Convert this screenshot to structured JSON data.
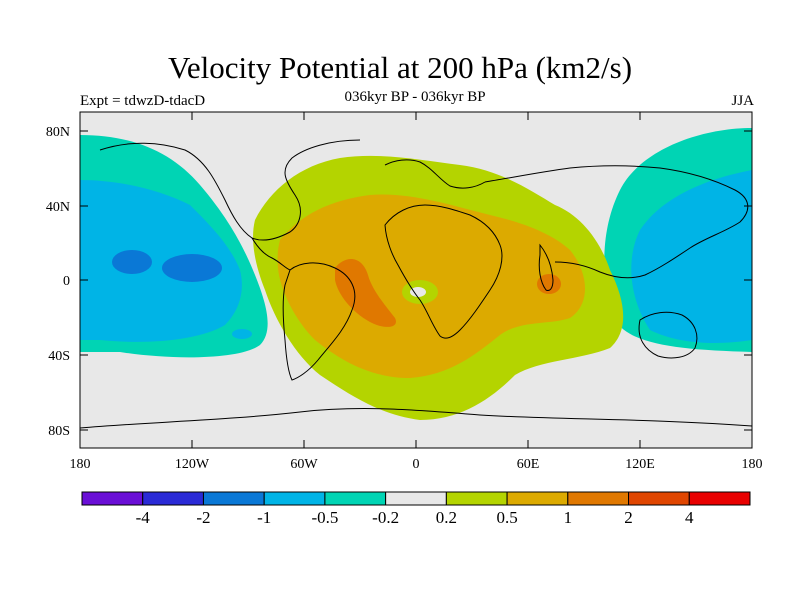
{
  "title": "Velocity Potential at 200 hPa (km2/s)",
  "subtitle": "036kyr BP - 036kyr BP",
  "experiment": "Expt = tdwzD-tdacD",
  "season": "JJA",
  "lat_ticks": [
    "80N",
    "40N",
    "0",
    "40S",
    "80S"
  ],
  "lon_ticks": [
    "180",
    "120W",
    "60W",
    "0",
    "60E",
    "120E",
    "180"
  ],
  "colorbar": {
    "colors": [
      "#6a0fd6",
      "#2a2ad6",
      "#0a78d6",
      "#00b4e6",
      "#00d4b4",
      "#e8e8e8",
      "#b4d400",
      "#dcaa00",
      "#e07800",
      "#e04600",
      "#e80000"
    ],
    "labels": [
      "-4",
      "-2",
      "-1",
      "-0.5",
      "-0.2",
      "0.2",
      "0.5",
      "1",
      "2",
      "4"
    ]
  },
  "chart_data": {
    "type": "heatmap",
    "title": "Velocity Potential at 200 hPa (km2/s)",
    "subtitle": "036kyr BP - 036kyr BP",
    "xlim": [
      -180,
      180
    ],
    "ylim": [
      -90,
      90
    ],
    "contour_levels": [
      -4,
      -2,
      -1,
      -0.5,
      -0.2,
      0.2,
      0.5,
      1,
      2,
      4
    ],
    "legend": "bottom"
  }
}
